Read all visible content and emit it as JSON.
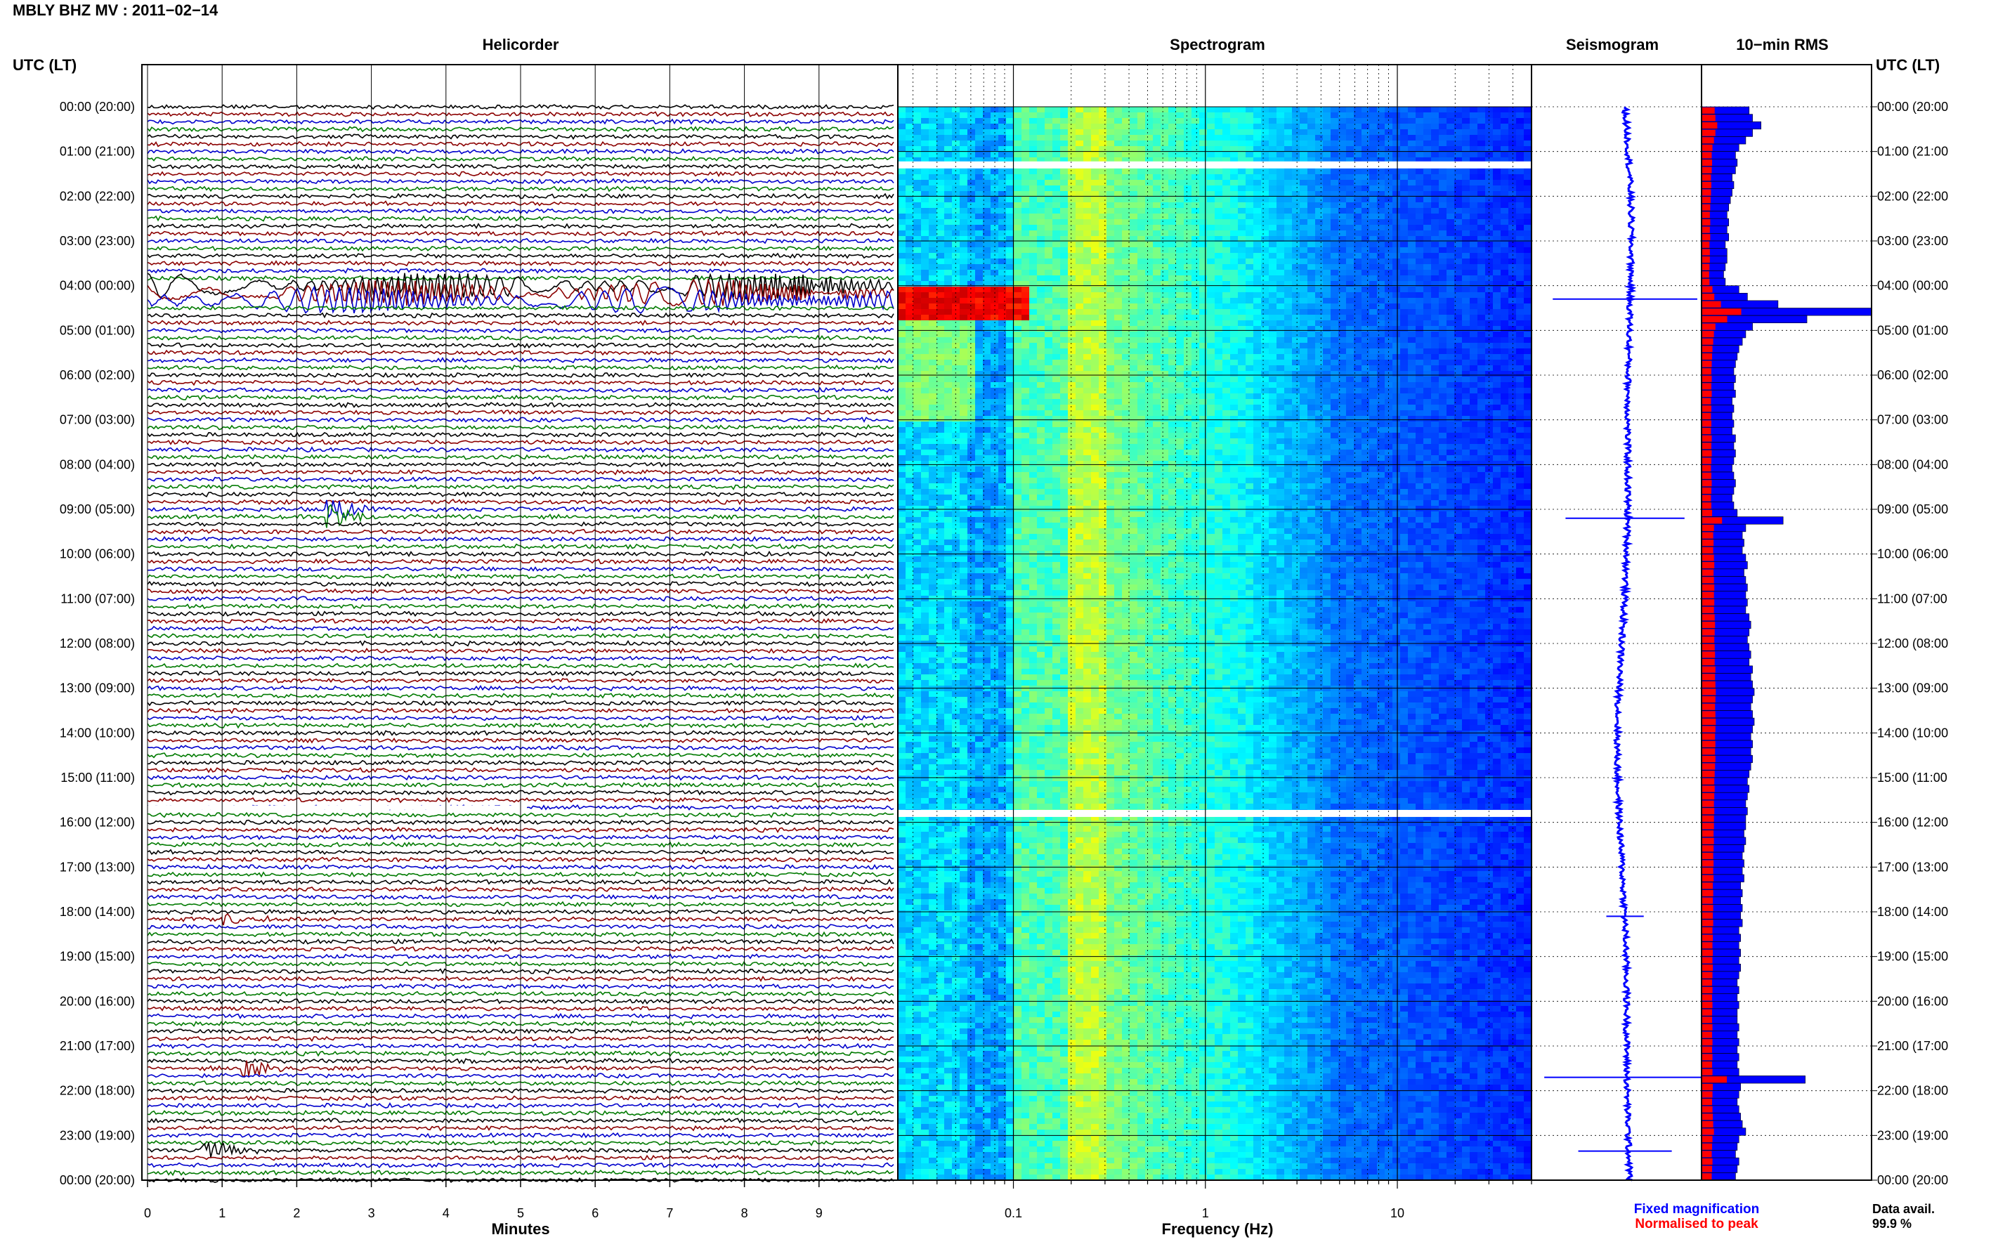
{
  "figure": {
    "title": "MBLY BHZ MV : 2011−02−14",
    "utc_label_left": "UTC (LT)",
    "utc_label_right": "UTC (LT)",
    "legend": {
      "fixed": "Fixed magnification",
      "normalised": "Normalised to peak",
      "fixed_color": "#0000ff",
      "normalised_color": "#ff0000"
    },
    "data_avail_label": "Data avail.",
    "data_avail_value": "99.9 %"
  },
  "chart_data": [
    {
      "type": "line",
      "panel": "helicorder",
      "title": "Helicorder",
      "xlabel": "Minutes",
      "ylabel": "",
      "x_ticks": [
        "0",
        "1",
        "2",
        "3",
        "4",
        "5",
        "6",
        "7",
        "8",
        "9"
      ],
      "xlim": [
        0,
        10
      ],
      "time_labels": [
        "00:00 (20:00)",
        "01:00 (21:00)",
        "02:00 (22:00)",
        "03:00 (23:00)",
        "04:00 (00:00)",
        "05:00 (01:00)",
        "06:00 (02:00)",
        "07:00 (03:00)",
        "08:00 (04:00)",
        "09:00 (05:00)",
        "10:00 (06:00)",
        "11:00 (07:00)",
        "12:00 (08:00)",
        "13:00 (09:00)",
        "14:00 (10:00)",
        "15:00 (11:00)",
        "16:00 (12:00)",
        "17:00 (13:00)",
        "18:00 (14:00)",
        "19:00 (15:00)",
        "20:00 (16:00)",
        "21:00 (17:00)",
        "22:00 (18:00)",
        "23:00 (19:00)",
        "00:00 (20:00)"
      ],
      "lines_per_hour": 6,
      "trace_colors": [
        "#000000",
        "#8b0000",
        "#0000cc",
        "#007a00"
      ],
      "events": [
        {
          "hour": 4.05,
          "minute_start": 0,
          "minute_end": 10,
          "amplitude": "large"
        },
        {
          "hour": 9.1,
          "minute": 2.45,
          "amplitude": "medium",
          "color": "#007a00"
        },
        {
          "hour": 18.1,
          "minute": 1.05,
          "amplitude": "small",
          "color": "#8b0000"
        },
        {
          "hour": 21.5,
          "minute": 1.3,
          "amplitude": "medium",
          "color": "#0000cc"
        },
        {
          "hour": 23.3,
          "minute": 0.78,
          "amplitude": "medium",
          "color": "#000000"
        }
      ],
      "gaps": [
        {
          "hour": 15.67
        }
      ]
    },
    {
      "type": "heatmap",
      "panel": "spectrogram",
      "title": "Spectrogram",
      "xlabel": "Frequency (Hz)",
      "xscale": "log",
      "xlim": [
        0.025,
        50
      ],
      "x_ticks": [
        "0.1",
        "1",
        "10"
      ],
      "colormap": "jet",
      "gaps_hours": [
        1.3,
        15.8
      ],
      "peak": {
        "hour": 4.25,
        "frequency_hz": 0.06
      }
    },
    {
      "type": "line",
      "panel": "seismogram",
      "title": "Seismogram",
      "color": "#0000ff",
      "spikes": [
        {
          "hour": 4.3,
          "extent": 0.85
        },
        {
          "hour": 9.2,
          "extent": 0.7
        },
        {
          "hour": 18.1,
          "extent": 0.22
        },
        {
          "hour": 21.7,
          "extent": 0.95
        },
        {
          "hour": 23.35,
          "extent": 0.55
        }
      ]
    },
    {
      "type": "bar",
      "panel": "rms",
      "title": "10−min RMS",
      "bins_per_hour": 6,
      "series": [
        {
          "name": "Fixed magnification",
          "color": "#0000ff"
        },
        {
          "name": "Normalised to peak",
          "color": "#ff0000"
        }
      ],
      "values_relative": [
        0.28,
        0.3,
        0.35,
        0.3,
        0.26,
        0.22,
        0.2,
        0.21,
        0.2,
        0.18,
        0.19,
        0.18,
        0.17,
        0.16,
        0.15,
        0.16,
        0.15,
        0.16,
        0.14,
        0.15,
        0.15,
        0.14,
        0.13,
        0.14,
        0.22,
        0.27,
        0.45,
        1.0,
        0.62,
        0.3,
        0.26,
        0.24,
        0.22,
        0.21,
        0.2,
        0.19,
        0.2,
        0.19,
        0.2,
        0.18,
        0.19,
        0.18,
        0.19,
        0.18,
        0.2,
        0.19,
        0.2,
        0.19,
        0.18,
        0.19,
        0.2,
        0.19,
        0.18,
        0.19,
        0.21,
        0.48,
        0.26,
        0.24,
        0.25,
        0.24,
        0.26,
        0.27,
        0.25,
        0.26,
        0.27,
        0.26,
        0.27,
        0.26,
        0.28,
        0.29,
        0.28,
        0.27,
        0.28,
        0.29,
        0.28,
        0.3,
        0.29,
        0.3,
        0.31,
        0.3,
        0.29,
        0.3,
        0.31,
        0.3,
        0.29,
        0.3,
        0.29,
        0.3,
        0.29,
        0.28,
        0.27,
        0.28,
        0.27,
        0.26,
        0.27,
        0.26,
        0.26,
        0.25,
        0.26,
        0.25,
        0.24,
        0.25,
        0.24,
        0.25,
        0.23,
        0.24,
        0.23,
        0.24,
        0.23,
        0.24,
        0.22,
        0.23,
        0.22,
        0.23,
        0.22,
        0.23,
        0.22,
        0.21,
        0.22,
        0.21,
        0.22,
        0.21,
        0.21,
        0.22,
        0.21,
        0.22,
        0.21,
        0.22,
        0.21,
        0.22,
        0.61,
        0.23,
        0.22,
        0.21,
        0.22,
        0.23,
        0.24,
        0.26,
        0.22,
        0.21,
        0.2,
        0.22,
        0.21,
        0.2
      ]
    }
  ]
}
